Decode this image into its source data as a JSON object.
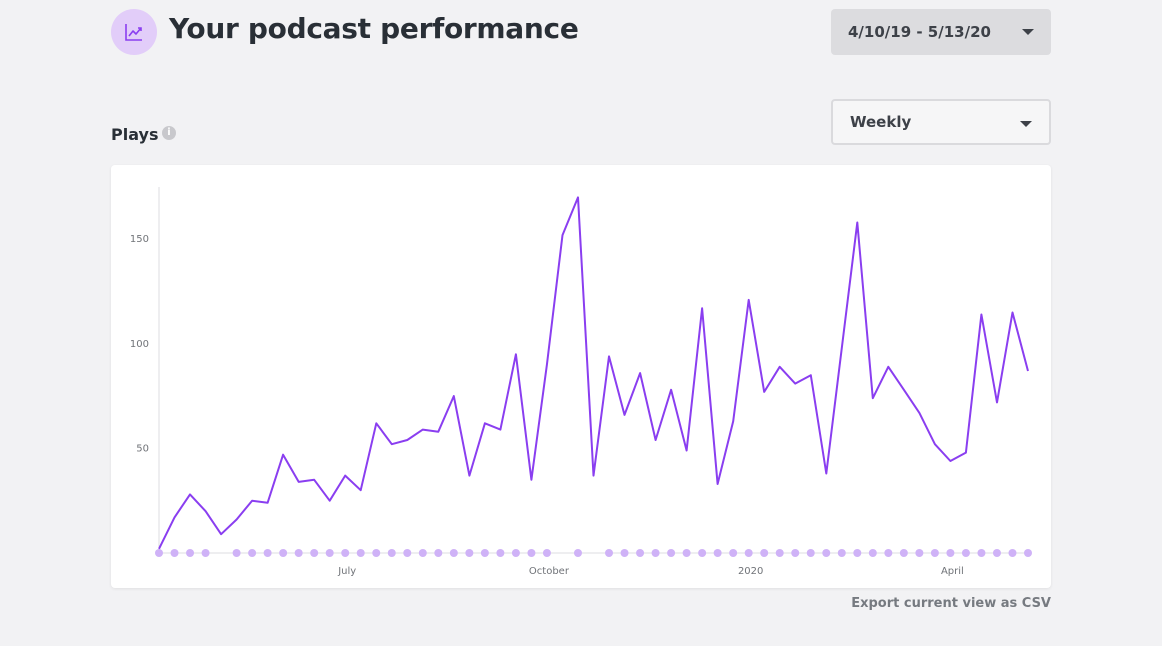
{
  "header": {
    "title": "Your podcast performance",
    "icon": "trending-chart-icon"
  },
  "date_range": {
    "selected": "4/10/19 - 5/13/20"
  },
  "interval": {
    "selected": "Weekly"
  },
  "plays": {
    "title": "Plays",
    "info_icon": "info-icon"
  },
  "export": {
    "label": "Export current view as CSV"
  },
  "colors": {
    "line": "#8a3ef0",
    "marker": "#cfb2f7",
    "accent_bg": "#e2cdf9"
  },
  "chart_data": {
    "type": "line",
    "x_tick_labels": [
      "July",
      "October",
      "2020",
      "April"
    ],
    "x_tick_index": [
      12,
      25,
      38,
      51
    ],
    "y_ticks": [
      50,
      100,
      150
    ],
    "ylim": [
      0,
      175
    ],
    "grid": false,
    "series": [
      {
        "values": [
          2,
          17,
          28,
          20,
          9,
          16,
          25,
          24,
          47,
          34,
          35,
          25,
          37,
          30,
          62,
          52,
          54,
          59,
          58,
          75,
          37,
          62,
          59,
          95,
          35,
          90,
          152,
          170,
          37,
          94,
          66,
          86,
          54,
          78,
          49,
          117,
          33,
          63,
          121,
          77,
          89,
          81,
          85,
          38,
          98,
          158,
          74,
          89,
          78,
          67,
          52,
          44,
          48,
          114,
          72,
          115,
          87
        ],
        "markers_missing_index": [
          4,
          26,
          28
        ]
      }
    ]
  }
}
